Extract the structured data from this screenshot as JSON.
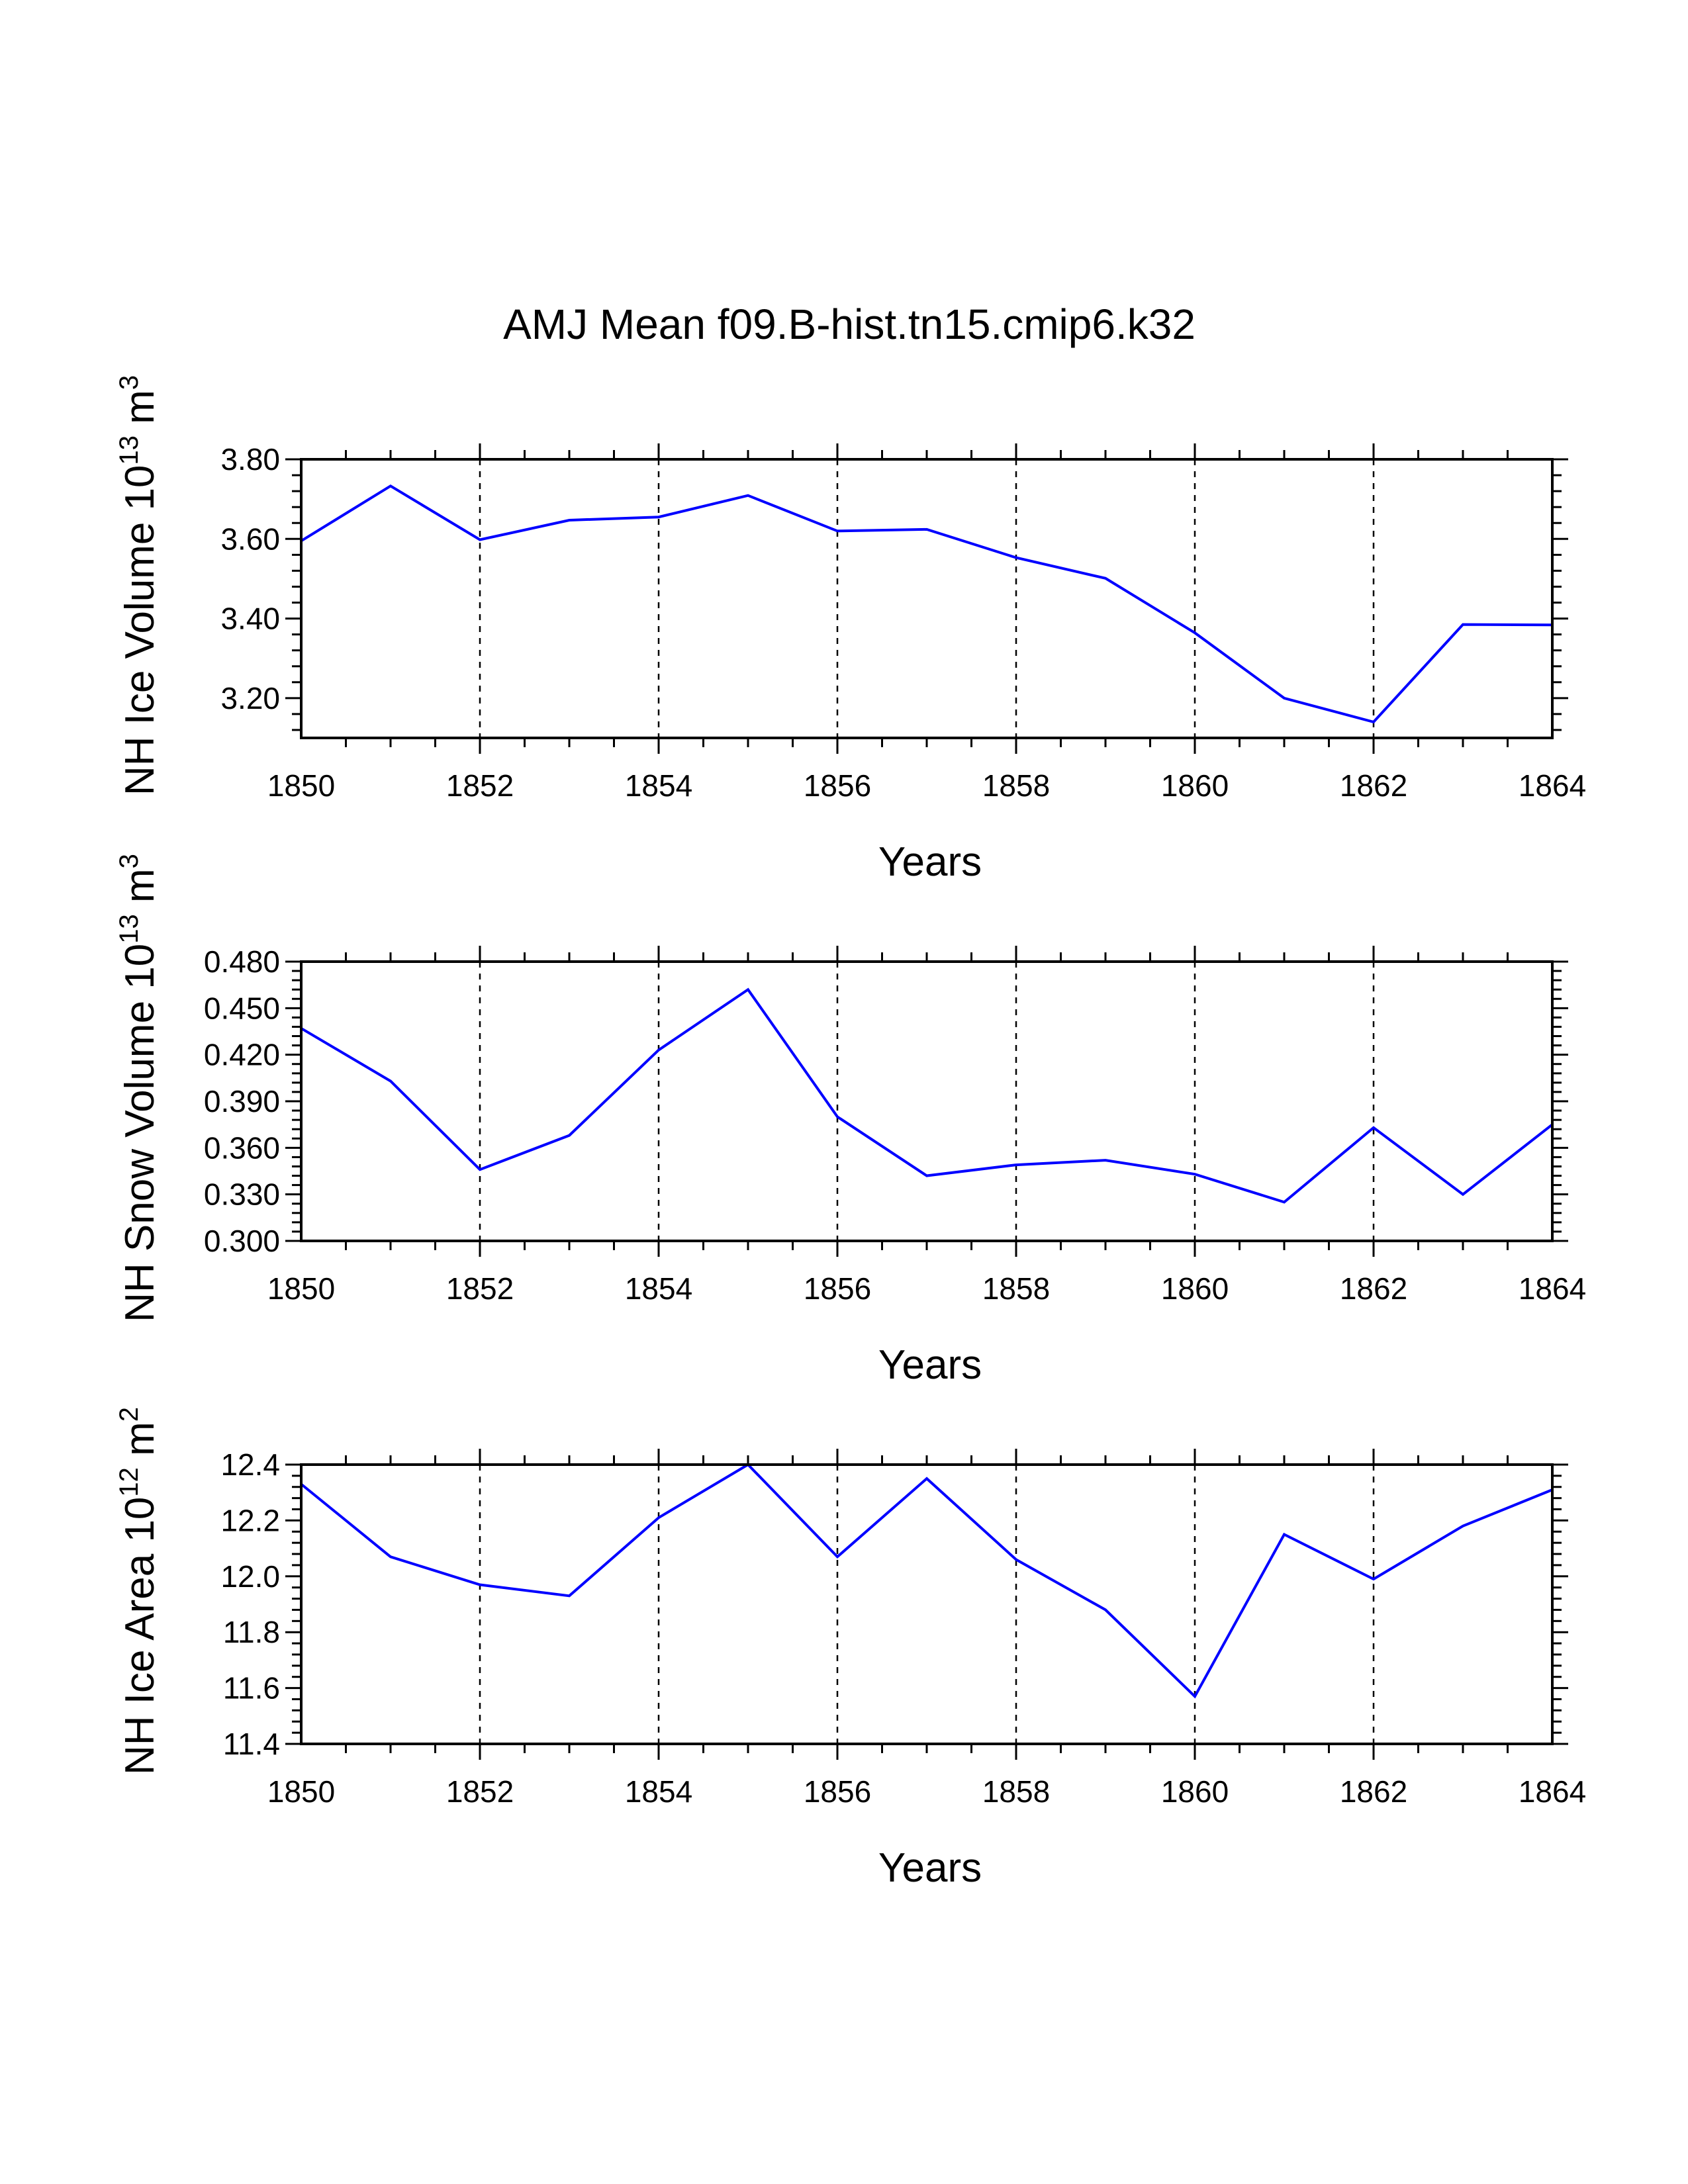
{
  "colors": {
    "series": "#0000ff",
    "axes": "#000000",
    "background": "#ffffff"
  },
  "chart_data": {
    "title": "AMJ Mean f09.B-hist.tn15.cmip6.k32",
    "panels": [
      {
        "type": "line",
        "ylabel": {
          "main": "NH Ice Volume 10",
          "sup": "13",
          "unit_base": " m",
          "unit_sup": "3"
        },
        "xlabel": "Years",
        "x": [
          1850,
          1851,
          1852,
          1853,
          1854,
          1855,
          1856,
          1857,
          1858,
          1859,
          1860,
          1861,
          1862,
          1863,
          1864
        ],
        "values": [
          3.595,
          3.733,
          3.598,
          3.647,
          3.655,
          3.709,
          3.62,
          3.624,
          3.553,
          3.501,
          3.364,
          3.2,
          3.14,
          3.385,
          3.384
        ],
        "xlim": [
          1850,
          1864
        ],
        "ylim": [
          3.1,
          3.8
        ],
        "xticks": [
          1850,
          1852,
          1854,
          1856,
          1858,
          1860,
          1862,
          1864
        ],
        "xtick_labels": [
          "1850",
          "1852",
          "1854",
          "1856",
          "1858",
          "1860",
          "1862",
          "1864"
        ],
        "yticks": [
          3.8,
          3.6,
          3.4,
          3.2
        ],
        "ytick_labels": [
          "3.80",
          "3.60",
          "3.40",
          "3.20"
        ],
        "grid": "vertical-dashed"
      },
      {
        "type": "line",
        "ylabel": {
          "main": "NH Snow Volume 10",
          "sup": "13",
          "unit_base": " m",
          "unit_sup": "3"
        },
        "xlabel": "Years",
        "x": [
          1850,
          1851,
          1852,
          1853,
          1854,
          1855,
          1856,
          1857,
          1858,
          1859,
          1860,
          1861,
          1862,
          1863,
          1864
        ],
        "values": [
          0.437,
          0.403,
          0.346,
          0.368,
          0.423,
          0.462,
          0.38,
          0.342,
          0.349,
          0.352,
          0.343,
          0.325,
          0.373,
          0.33,
          0.375
        ],
        "xlim": [
          1850,
          1864
        ],
        "ylim": [
          0.3,
          0.48
        ],
        "xticks": [
          1850,
          1852,
          1854,
          1856,
          1858,
          1860,
          1862,
          1864
        ],
        "xtick_labels": [
          "1850",
          "1852",
          "1854",
          "1856",
          "1858",
          "1860",
          "1862",
          "1864"
        ],
        "yticks": [
          0.48,
          0.45,
          0.42,
          0.39,
          0.36,
          0.33,
          0.3
        ],
        "ytick_labels": [
          "0.480",
          "0.450",
          "0.420",
          "0.390",
          "0.360",
          "0.330",
          "0.300"
        ],
        "grid": "vertical-dashed"
      },
      {
        "type": "line",
        "ylabel": {
          "main": "NH Ice Area 10",
          "sup": "12",
          "unit_base": " m",
          "unit_sup": "2"
        },
        "xlabel": "Years",
        "x": [
          1850,
          1851,
          1852,
          1853,
          1854,
          1855,
          1856,
          1857,
          1858,
          1859,
          1860,
          1861,
          1862,
          1863,
          1864
        ],
        "values": [
          12.33,
          12.07,
          11.97,
          11.93,
          12.21,
          12.4,
          12.07,
          12.35,
          12.06,
          11.88,
          11.57,
          12.15,
          11.99,
          12.18,
          12.31
        ],
        "xlim": [
          1850,
          1864
        ],
        "ylim": [
          11.4,
          12.4
        ],
        "xticks": [
          1850,
          1852,
          1854,
          1856,
          1858,
          1860,
          1862,
          1864
        ],
        "xtick_labels": [
          "1850",
          "1852",
          "1854",
          "1856",
          "1858",
          "1860",
          "1862",
          "1864"
        ],
        "yticks": [
          12.4,
          12.2,
          12.0,
          11.8,
          11.6,
          11.4
        ],
        "ytick_labels": [
          "12.4",
          "12.2",
          "12.0",
          "11.8",
          "11.6",
          "11.4"
        ],
        "grid": "vertical-dashed"
      }
    ]
  }
}
